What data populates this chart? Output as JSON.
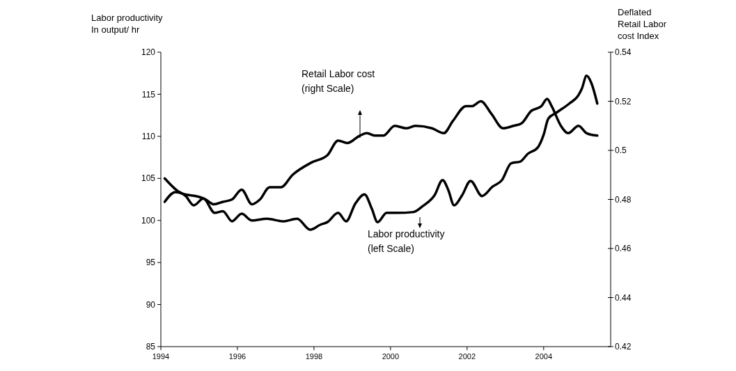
{
  "chart_data": {
    "type": "line",
    "ylabel": "Labor productivity\nIn output/ hr",
    "y2label": "Deflated\nRetail Labor\ncost Index",
    "xlim": [
      1994,
      2005.75
    ],
    "xticks": [
      1994,
      1996,
      1998,
      2000,
      2002,
      2004
    ],
    "ylim": [
      85,
      120
    ],
    "yticks": [
      85,
      90,
      95,
      100,
      105,
      110,
      115,
      120
    ],
    "y2lim": [
      0.42,
      0.54
    ],
    "y2ticks": [
      0.42,
      0.44,
      0.46,
      0.48,
      0.5,
      0.52,
      0.54
    ],
    "grid": false,
    "annotations": [
      "Labor productivity\n(left Scale)",
      "Retail Labor cost\n(right Scale)"
    ],
    "series": [
      {
        "color": "#000000",
        "x": [
          1994.1,
          1994.41,
          1994.65,
          1994.86,
          1995.11,
          1995.41,
          1995.62,
          1995.86,
          1996.11,
          1996.38,
          1996.77,
          1997.2,
          1997.56,
          1997.9,
          1998.17,
          1998.35,
          1998.63,
          1998.84,
          1999.08,
          1999.32,
          1999.51,
          1999.66,
          1999.9,
          2000.17,
          2000.6,
          2000.84,
          2001.15,
          2001.36,
          2001.51,
          2001.66,
          2001.87,
          2002.09,
          2002.39,
          2002.66,
          2002.91,
          2003.15,
          2003.39,
          2003.58,
          2003.85,
          2004.0,
          2004.12,
          2004.33,
          2004.67,
          2004.91,
          2005.0,
          2005.12,
          2005.24,
          2005.4
        ],
        "values": [
          105.0,
          103.6,
          102.9,
          101.8,
          102.6,
          100.9,
          101.1,
          99.9,
          100.8,
          100.0,
          100.2,
          99.9,
          100.2,
          98.9,
          99.5,
          99.8,
          100.9,
          99.9,
          102.0,
          103.1,
          101.4,
          99.8,
          100.9,
          100.9,
          101.0,
          101.7,
          103.0,
          104.8,
          103.6,
          101.8,
          103.0,
          104.7,
          102.9,
          104.0,
          104.8,
          106.8,
          107.0,
          107.9,
          108.7,
          110.2,
          112.1,
          112.8,
          113.9,
          114.9,
          115.7,
          117.2,
          116.4,
          113.9
        ]
      },
      {
        "color": "#000000",
        "axis": "y2",
        "x": [
          1994.1,
          1994.38,
          1994.65,
          1995.01,
          1995.17,
          1995.38,
          1995.62,
          1995.86,
          1996.11,
          1996.38,
          1996.59,
          1996.84,
          1997.14,
          1997.44,
          1997.93,
          1998.35,
          1998.63,
          1998.87,
          1999.2,
          1999.38,
          1999.6,
          1999.81,
          2000.11,
          2000.41,
          2000.65,
          2001.08,
          2001.39,
          2001.63,
          2001.97,
          2002.12,
          2002.36,
          2002.63,
          2002.94,
          2003.21,
          2003.42,
          2003.67,
          2003.94,
          2004.09,
          2004.21,
          2004.45,
          2004.64,
          2004.91,
          2005.12,
          2005.4
        ],
        "values": [
          0.479,
          0.483,
          0.482,
          0.481,
          0.48,
          0.478,
          0.479,
          0.48,
          0.484,
          0.478,
          0.48,
          0.485,
          0.485,
          0.49,
          0.495,
          0.498,
          0.504,
          0.503,
          0.506,
          0.507,
          0.506,
          0.506,
          0.51,
          0.509,
          0.51,
          0.509,
          0.507,
          0.512,
          0.518,
          0.518,
          0.52,
          0.515,
          0.509,
          0.51,
          0.511,
          0.516,
          0.518,
          0.521,
          0.518,
          0.51,
          0.507,
          0.51,
          0.507,
          0.506
        ]
      }
    ]
  }
}
